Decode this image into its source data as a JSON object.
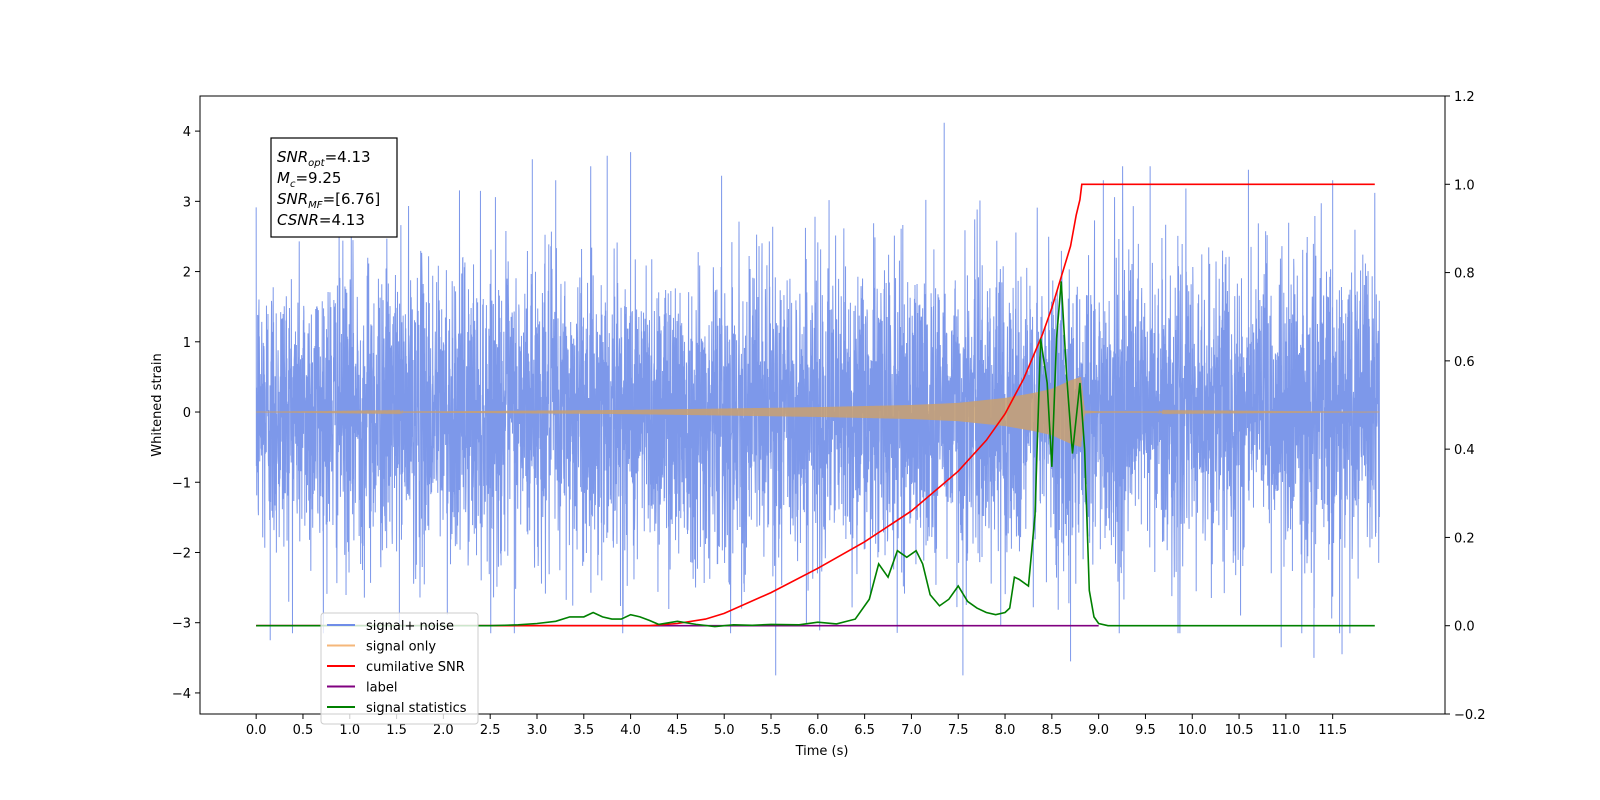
{
  "chart_data": {
    "type": "line",
    "xlabel": "Time (s)",
    "ylabel": "Whitened strain",
    "xlim": [
      -0.6,
      12.7
    ],
    "ylim": [
      -4.3,
      4.5
    ],
    "y2lim": [
      -0.2,
      1.2
    ],
    "grid": false,
    "legend_position": "lower-left",
    "x_ticks": [
      "0.0",
      "0.5",
      "1.0",
      "1.5",
      "2.0",
      "2.5",
      "3.0",
      "3.5",
      "4.0",
      "4.5",
      "5.0",
      "5.5",
      "6.0",
      "6.5",
      "7.0",
      "7.5",
      "8.0",
      "8.5",
      "9.0",
      "9.5",
      "10.0",
      "10.5",
      "11.0",
      "11.5"
    ],
    "x_tick_values": [
      0.0,
      0.5,
      1.0,
      1.5,
      2.0,
      2.5,
      3.0,
      3.5,
      4.0,
      4.5,
      5.0,
      5.5,
      6.0,
      6.5,
      7.0,
      7.5,
      8.0,
      8.5,
      9.0,
      9.5,
      10.0,
      10.5,
      11.0,
      11.5
    ],
    "y_ticks": [
      "4",
      "3",
      "2",
      "1",
      "0",
      "−1",
      "−2",
      "−3",
      "−4"
    ],
    "y_tick_values": [
      4,
      3,
      2,
      1,
      0,
      -1,
      -2,
      -3,
      -4
    ],
    "y2_ticks": [
      "1.2",
      "1.0",
      "0.8",
      "0.6",
      "0.4",
      "0.2",
      "0.0",
      "−0.2"
    ],
    "y2_tick_values": [
      1.2,
      1.0,
      0.8,
      0.6,
      0.4,
      0.2,
      0.0,
      -0.2
    ],
    "annotation": {
      "lines": [
        {
          "main": "SNR",
          "sub": "opt",
          "rest": "=4.13"
        },
        {
          "main": "M",
          "sub": "c",
          "rest": "=9.25"
        },
        {
          "main": "SNR",
          "sub": "MF",
          "rest": "=[6.76]"
        },
        {
          "main": "CSNR",
          "sub": "",
          "rest": "=4.13"
        }
      ]
    },
    "legend": [
      {
        "label": "signal+ noise",
        "color": "#6f8de8"
      },
      {
        "label": "signal only",
        "color": "#f5b77a"
      },
      {
        "label": "cumilative SNR",
        "color": "#ff0000"
      },
      {
        "label": "label",
        "color": "#800080"
      },
      {
        "label": "signal statistics",
        "color": "#008000"
      }
    ],
    "series": [
      {
        "name": "signal+ noise",
        "axis": "left",
        "color": "#6f8de8",
        "description_range": {
          "x_start": 0.0,
          "x_end": 12.0,
          "envelope_min": -3.75,
          "envelope_max": 4.1
        },
        "peaks": [
          [
            2.95,
            3.6
          ],
          [
            3.2,
            3.3
          ],
          [
            3.75,
            3.65
          ],
          [
            4.0,
            3.7
          ],
          [
            7.35,
            4.12
          ],
          [
            9.05,
            3.3
          ],
          [
            9.55,
            3.5
          ],
          [
            10.6,
            3.45
          ],
          [
            11.5,
            3.3
          ],
          [
            5.55,
            -3.75
          ],
          [
            7.55,
            -3.75
          ],
          [
            0.15,
            -3.25
          ],
          [
            8.7,
            -3.55
          ],
          [
            10.95,
            -3.35
          ],
          [
            11.3,
            -3.5
          ],
          [
            11.6,
            -3.45
          ]
        ]
      },
      {
        "name": "signal only",
        "axis": "left",
        "color": "#f5b77a",
        "description_range": {
          "x_start": 0.0,
          "x_end": 12.0
        },
        "envelope": [
          [
            0.0,
            0.0
          ],
          [
            2.0,
            0.01
          ],
          [
            4.0,
            0.03
          ],
          [
            6.0,
            0.07
          ],
          [
            7.0,
            0.1
          ],
          [
            7.5,
            0.13
          ],
          [
            8.0,
            0.2
          ],
          [
            8.3,
            0.27
          ],
          [
            8.5,
            0.33
          ],
          [
            8.7,
            0.45
          ],
          [
            8.81,
            0.5
          ],
          [
            8.85,
            0.02
          ],
          [
            9.0,
            0.01
          ],
          [
            12.0,
            0.0
          ]
        ]
      },
      {
        "name": "cumilative SNR",
        "axis": "right",
        "color": "#ff0000",
        "x": [
          0.0,
          4.2,
          4.5,
          4.8,
          5.0,
          5.5,
          6.0,
          6.5,
          7.0,
          7.5,
          7.8,
          8.0,
          8.2,
          8.4,
          8.5,
          8.6,
          8.7,
          8.76,
          8.8,
          8.82,
          11.95
        ],
        "y": [
          0.0,
          0.0,
          0.005,
          0.015,
          0.028,
          0.075,
          0.13,
          0.19,
          0.26,
          0.35,
          0.42,
          0.48,
          0.56,
          0.66,
          0.72,
          0.79,
          0.86,
          0.93,
          0.965,
          1.0,
          1.0
        ]
      },
      {
        "name": "label",
        "axis": "right",
        "color": "#800080",
        "x": [
          0.0,
          9.0
        ],
        "y": [
          0.0,
          0.0
        ]
      },
      {
        "name": "signal statistics",
        "axis": "right",
        "color": "#008000",
        "x": [
          0.0,
          2.5,
          2.8,
          3.0,
          3.2,
          3.35,
          3.5,
          3.6,
          3.7,
          3.8,
          3.9,
          4.0,
          4.1,
          4.2,
          4.3,
          4.5,
          4.7,
          4.9,
          5.1,
          5.3,
          5.5,
          5.8,
          6.0,
          6.2,
          6.4,
          6.55,
          6.65,
          6.75,
          6.85,
          6.95,
          7.05,
          7.12,
          7.2,
          7.3,
          7.4,
          7.5,
          7.6,
          7.7,
          7.8,
          7.9,
          8.0,
          8.05,
          8.1,
          8.15,
          8.25,
          8.32,
          8.38,
          8.45,
          8.5,
          8.55,
          8.6,
          8.66,
          8.72,
          8.8,
          8.85,
          8.9,
          8.95,
          9.0,
          9.1,
          11.95
        ],
        "y": [
          0.0,
          0.0,
          0.002,
          0.005,
          0.01,
          0.02,
          0.02,
          0.03,
          0.02,
          0.015,
          0.015,
          0.025,
          0.02,
          0.012,
          0.003,
          0.01,
          0.003,
          -0.002,
          0.002,
          0.001,
          0.003,
          0.002,
          0.008,
          0.004,
          0.015,
          0.06,
          0.14,
          0.11,
          0.17,
          0.155,
          0.17,
          0.14,
          0.07,
          0.045,
          0.06,
          0.09,
          0.055,
          0.04,
          0.03,
          0.025,
          0.03,
          0.04,
          0.11,
          0.105,
          0.09,
          0.25,
          0.65,
          0.55,
          0.36,
          0.65,
          0.78,
          0.56,
          0.39,
          0.55,
          0.4,
          0.08,
          0.02,
          0.005,
          0.0,
          0.0
        ]
      }
    ]
  }
}
